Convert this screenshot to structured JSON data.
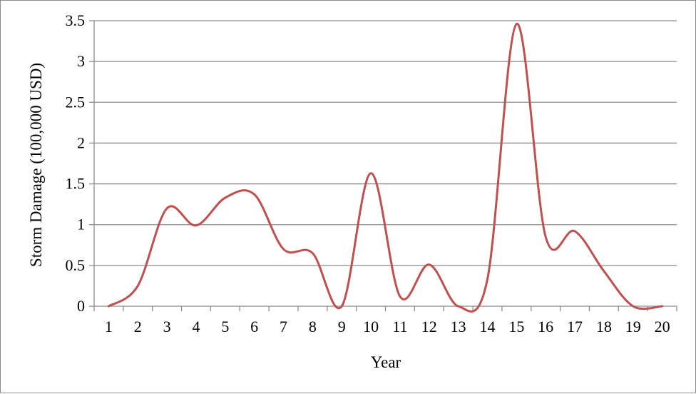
{
  "chart_data": {
    "type": "line",
    "title": "",
    "xlabel": "Year",
    "ylabel": "Storm Damage (100,000 USD)",
    "categories": [
      "1",
      "2",
      "3",
      "4",
      "5",
      "6",
      "7",
      "8",
      "9",
      "10",
      "11",
      "12",
      "13",
      "14",
      "15",
      "16",
      "17",
      "18",
      "19",
      "20"
    ],
    "series": [
      {
        "values": [
          0,
          0.25,
          1.2,
          0.99,
          1.33,
          1.37,
          0.7,
          0.65,
          0,
          1.63,
          0.12,
          0.51,
          0,
          0.33,
          3.46,
          0.85,
          0.92,
          0.43,
          0,
          0
        ],
        "color": "#c0504d"
      }
    ],
    "ylim": [
      0,
      3.5
    ],
    "yticks": [
      "0",
      "0.5",
      "1",
      "1.5",
      "2",
      "2.5",
      "3",
      "3.5"
    ],
    "grid": "horizontal",
    "smooth": true,
    "legend": "none"
  },
  "colors": {
    "gridline": "#8c8c8c",
    "axis": "#8c8c8c",
    "frame": "#8c8c8c"
  }
}
